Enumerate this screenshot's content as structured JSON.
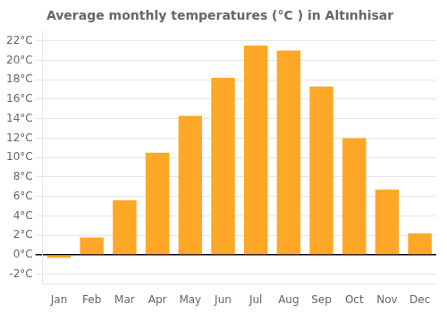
{
  "chart_data": {
    "type": "bar",
    "title": "Average monthly temperatures (°C ) in Altınhisar",
    "categories": [
      "Jan",
      "Feb",
      "Mar",
      "Apr",
      "May",
      "Jun",
      "Jul",
      "Aug",
      "Sep",
      "Oct",
      "Nov",
      "Dec"
    ],
    "values": [
      -0.3,
      1.8,
      5.6,
      10.5,
      14.3,
      18.2,
      21.5,
      21.0,
      17.3,
      12.0,
      6.7,
      2.2
    ],
    "color": "#FFA726",
    "ylim": [
      -3,
      23
    ],
    "yticks": [
      {
        "value": -2,
        "label": "-2°C"
      },
      {
        "value": 0,
        "label": "0°C"
      },
      {
        "value": 2,
        "label": "2°C"
      },
      {
        "value": 4,
        "label": "4°C"
      },
      {
        "value": 6,
        "label": "6°C"
      },
      {
        "value": 8,
        "label": "8°C"
      },
      {
        "value": 10,
        "label": "10°C"
      },
      {
        "value": 12,
        "label": "12°C"
      },
      {
        "value": 14,
        "label": "14°C"
      },
      {
        "value": 16,
        "label": "16°C"
      },
      {
        "value": 18,
        "label": "18°C"
      },
      {
        "value": 20,
        "label": "20°C"
      },
      {
        "value": 22,
        "label": "22°C"
      }
    ],
    "grid": true
  }
}
